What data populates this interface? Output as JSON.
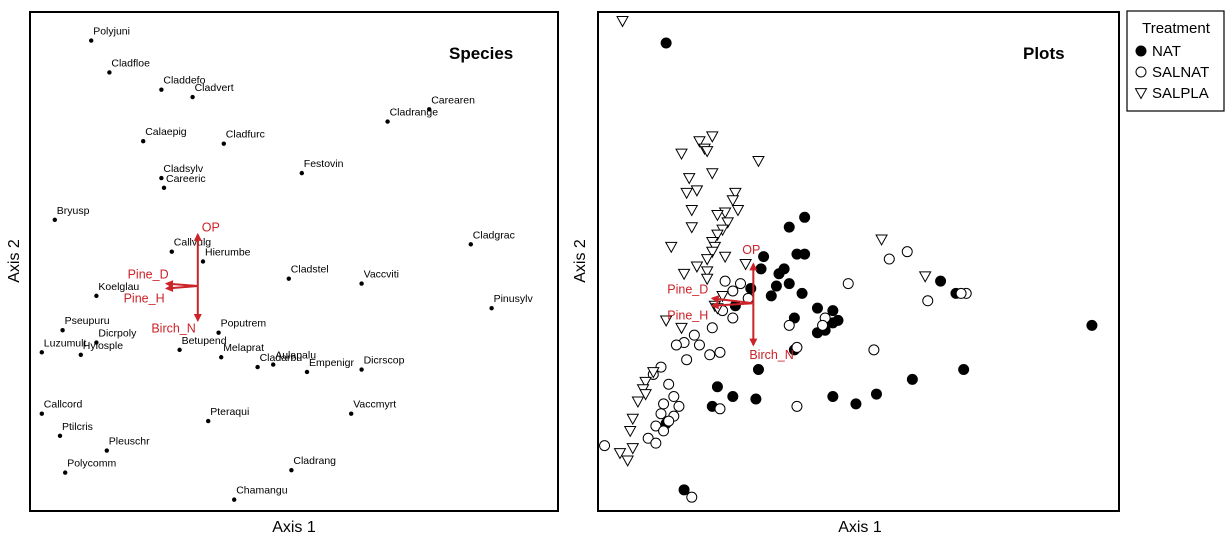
{
  "chart_data": [
    {
      "type": "scatter",
      "title": "Species",
      "xlabel": "Axis 1",
      "ylabel": "Axis 2",
      "xlim": [
        0,
        100
      ],
      "ylim": [
        0,
        100
      ],
      "grid": false,
      "vector_color": "#cc2229",
      "points": [
        {
          "label": "Polyjuni",
          "x": 11.0,
          "y": 95.0
        },
        {
          "label": "Cladfloe",
          "x": 14.5,
          "y": 88.5
        },
        {
          "label": "Claddefo",
          "x": 24.5,
          "y": 85.0
        },
        {
          "label": "Cladvert",
          "x": 30.5,
          "y": 83.5
        },
        {
          "label": "Carearen",
          "x": 76.0,
          "y": 81.0
        },
        {
          "label": "Cladrange",
          "x": 68.0,
          "y": 78.5
        },
        {
          "label": "Calaepig",
          "x": 21.0,
          "y": 74.5
        },
        {
          "label": "Cladfurc",
          "x": 36.5,
          "y": 74.0
        },
        {
          "label": "Cladsylv",
          "x": 24.5,
          "y": 67.0
        },
        {
          "label": "Festovin",
          "x": 51.5,
          "y": 68.0
        },
        {
          "label": "Careeric",
          "x": 25.0,
          "y": 65.0
        },
        {
          "label": "Bryusp",
          "x": 4.0,
          "y": 58.5
        },
        {
          "label": "Cladgrac",
          "x": 84.0,
          "y": 53.5
        },
        {
          "label": "Callvulg",
          "x": 26.5,
          "y": 52.0
        },
        {
          "label": "Hierumbe",
          "x": 32.5,
          "y": 50.0
        },
        {
          "label": "Cladstel",
          "x": 49.0,
          "y": 46.5
        },
        {
          "label": "Vaccviti",
          "x": 63.0,
          "y": 45.5
        },
        {
          "label": "Koelglau",
          "x": 12.0,
          "y": 43.0
        },
        {
          "label": "Pinusylv",
          "x": 88.0,
          "y": 40.5
        },
        {
          "label": "Pseupuru",
          "x": 5.5,
          "y": 36.0
        },
        {
          "label": "Poputrem",
          "x": 35.5,
          "y": 35.5
        },
        {
          "label": "Dicrpoly",
          "x": 12.0,
          "y": 33.5
        },
        {
          "label": "Betupend",
          "x": 28.0,
          "y": 32.0
        },
        {
          "label": "Aulapalu",
          "x": 46.0,
          "y": 29.0
        },
        {
          "label": "Luzumult",
          "x": 1.5,
          "y": 31.5
        },
        {
          "label": "Hylosple",
          "x": 9.0,
          "y": 31.0
        },
        {
          "label": "Melaprat",
          "x": 36.0,
          "y": 30.5
        },
        {
          "label": "Cladarbu",
          "x": 43.0,
          "y": 28.5
        },
        {
          "label": "Empenigr",
          "x": 52.5,
          "y": 27.5
        },
        {
          "label": "Dicrscop",
          "x": 63.0,
          "y": 28.0
        },
        {
          "label": "Callcord",
          "x": 1.5,
          "y": 19.0
        },
        {
          "label": "Vaccmyrt",
          "x": 61.0,
          "y": 19.0
        },
        {
          "label": "Pteraqui",
          "x": 33.5,
          "y": 17.5
        },
        {
          "label": "Ptilcris",
          "x": 5.0,
          "y": 14.5
        },
        {
          "label": "Pleuschr",
          "x": 14.0,
          "y": 11.5
        },
        {
          "label": "Cladrang",
          "x": 49.5,
          "y": 7.5
        },
        {
          "label": "Polycomm",
          "x": 6.0,
          "y": 7.0
        },
        {
          "label": "Chamangu",
          "x": 38.5,
          "y": 1.5
        }
      ],
      "vectors": [
        {
          "label": "OP",
          "origin": [
            31.5,
            45.0
          ],
          "end": [
            31.5,
            55.5
          ]
        },
        {
          "label": "Birch_N",
          "origin": [
            31.5,
            45.0
          ],
          "end": [
            31.5,
            38.0
          ]
        },
        {
          "label": "Pine_D",
          "origin": [
            31.5,
            45.0
          ],
          "end": [
            25.5,
            45.5
          ]
        },
        {
          "label": "Pine_H",
          "origin": [
            31.5,
            45.0
          ],
          "end": [
            25.5,
            44.5
          ]
        }
      ]
    },
    {
      "type": "scatter",
      "title": "Plots",
      "xlabel": "Axis 1",
      "ylabel": "Axis 2",
      "xlim": [
        0,
        100
      ],
      "ylim": [
        0,
        100
      ],
      "grid": false,
      "legend": {
        "title": "Treatment",
        "position": "outside-right"
      },
      "vector_color": "#cc2229",
      "series": [
        {
          "name": "NAT",
          "marker": "filled-circle",
          "points": [
            [
              12.5,
              94.5
            ],
            [
              39.5,
              59.0
            ],
            [
              36.5,
              57.0
            ],
            [
              39.5,
              51.5
            ],
            [
              38.0,
              51.5
            ],
            [
              31.5,
              51.0
            ],
            [
              35.5,
              48.5
            ],
            [
              31.0,
              48.5
            ],
            [
              34.5,
              47.5
            ],
            [
              34.0,
              45.0
            ],
            [
              36.5,
              45.5
            ],
            [
              29.0,
              44.5
            ],
            [
              39.0,
              43.5
            ],
            [
              33.0,
              43.0
            ],
            [
              42.0,
              40.5
            ],
            [
              26.0,
              41.0
            ],
            [
              45.0,
              40.0
            ],
            [
              46.0,
              38.0
            ],
            [
              43.5,
              36.0
            ],
            [
              45.0,
              37.5
            ],
            [
              37.5,
              38.5
            ],
            [
              42.0,
              35.5
            ],
            [
              37.5,
              32.0
            ],
            [
              30.5,
              28.0
            ],
            [
              30.0,
              22.0
            ],
            [
              22.5,
              24.5
            ],
            [
              21.5,
              20.5
            ],
            [
              25.5,
              22.5
            ],
            [
              45.0,
              22.5
            ],
            [
              49.5,
              21.0
            ],
            [
              53.5,
              23.0
            ],
            [
              60.5,
              26.0
            ],
            [
              70.5,
              28.0
            ],
            [
              66.0,
              46.0
            ],
            [
              69.0,
              43.5
            ],
            [
              95.5,
              37.0
            ],
            [
              12.5,
              17.0
            ],
            [
              16.0,
              3.5
            ]
          ]
        },
        {
          "name": "SALNAT",
          "marker": "open-circle",
          "points": [
            [
              56.0,
              50.5
            ],
            [
              59.5,
              52.0
            ],
            [
              48.0,
              45.5
            ],
            [
              43.5,
              38.5
            ],
            [
              43.0,
              37.0
            ],
            [
              36.5,
              37.0
            ],
            [
              27.0,
              45.5
            ],
            [
              24.0,
              46.0
            ],
            [
              25.5,
              44.0
            ],
            [
              28.5,
              42.5
            ],
            [
              23.5,
              40.0
            ],
            [
              25.5,
              38.5
            ],
            [
              21.5,
              36.5
            ],
            [
              18.0,
              35.0
            ],
            [
              16.0,
              33.5
            ],
            [
              19.0,
              33.0
            ],
            [
              14.5,
              33.0
            ],
            [
              23.0,
              31.5
            ],
            [
              21.0,
              31.0
            ],
            [
              16.5,
              30.0
            ],
            [
              11.5,
              28.5
            ],
            [
              10.0,
              27.0
            ],
            [
              13.0,
              25.0
            ],
            [
              14.0,
              22.5
            ],
            [
              12.0,
              21.0
            ],
            [
              15.0,
              20.5
            ],
            [
              11.5,
              19.0
            ],
            [
              14.0,
              18.5
            ],
            [
              13.0,
              17.5
            ],
            [
              10.5,
              16.5
            ],
            [
              12.0,
              15.5
            ],
            [
              9.0,
              14.0
            ],
            [
              0.5,
              12.5
            ],
            [
              10.5,
              13.0
            ],
            [
              23.0,
              20.0
            ],
            [
              38.0,
              20.5
            ],
            [
              38.0,
              32.5
            ],
            [
              53.0,
              32.0
            ],
            [
              63.5,
              42.0
            ],
            [
              71.0,
              43.5
            ],
            [
              70.0,
              43.5
            ],
            [
              17.5,
              2.0
            ]
          ]
        },
        {
          "name": "SALPLA",
          "marker": "open-triangle",
          "points": [
            [
              4.0,
              99.0
            ],
            [
              21.5,
              75.5
            ],
            [
              19.0,
              74.5
            ],
            [
              20.0,
              73.0
            ],
            [
              15.5,
              72.0
            ],
            [
              20.5,
              72.5
            ],
            [
              30.5,
              70.5
            ],
            [
              21.5,
              68.0
            ],
            [
              17.0,
              67.0
            ],
            [
              16.5,
              64.0
            ],
            [
              18.5,
              64.5
            ],
            [
              26.0,
              64.0
            ],
            [
              25.5,
              62.5
            ],
            [
              26.5,
              60.5
            ],
            [
              24.0,
              60.0
            ],
            [
              22.5,
              59.5
            ],
            [
              17.5,
              60.5
            ],
            [
              24.5,
              58.0
            ],
            [
              23.5,
              56.5
            ],
            [
              17.5,
              57.0
            ],
            [
              22.5,
              55.5
            ],
            [
              21.5,
              54.0
            ],
            [
              22.0,
              53.0
            ],
            [
              13.5,
              53.0
            ],
            [
              21.5,
              52.0
            ],
            [
              20.5,
              50.5
            ],
            [
              18.5,
              49.0
            ],
            [
              20.5,
              48.0
            ],
            [
              24.0,
              51.0
            ],
            [
              28.0,
              49.5
            ],
            [
              54.5,
              54.5
            ],
            [
              63.0,
              47.0
            ],
            [
              16.0,
              47.5
            ],
            [
              20.5,
              46.5
            ],
            [
              12.5,
              38.0
            ],
            [
              15.5,
              36.5
            ],
            [
              10.0,
              27.5
            ],
            [
              8.5,
              25.5
            ],
            [
              8.0,
              24.0
            ],
            [
              8.5,
              23.0
            ],
            [
              7.0,
              21.5
            ],
            [
              6.0,
              18.0
            ],
            [
              5.5,
              15.5
            ],
            [
              6.0,
              12.0
            ],
            [
              3.5,
              11.0
            ],
            [
              5.0,
              9.5
            ],
            [
              23.5,
              43.0
            ],
            [
              22.0,
              41.0
            ],
            [
              22.5,
              40.5
            ]
          ]
        }
      ],
      "vectors": [
        {
          "label": "OP",
          "origin": [
            29.5,
            41.5
          ],
          "end": [
            29.5,
            49.5
          ]
        },
        {
          "label": "Birch_N",
          "origin": [
            29.5,
            41.5
          ],
          "end": [
            29.5,
            33.0
          ]
        },
        {
          "label": "Pine_D",
          "origin": [
            29.5,
            41.5
          ],
          "end": [
            21.5,
            42.5
          ]
        },
        {
          "label": "Pine_H",
          "origin": [
            29.5,
            41.5
          ],
          "end": [
            21.5,
            41.0
          ]
        }
      ]
    }
  ]
}
